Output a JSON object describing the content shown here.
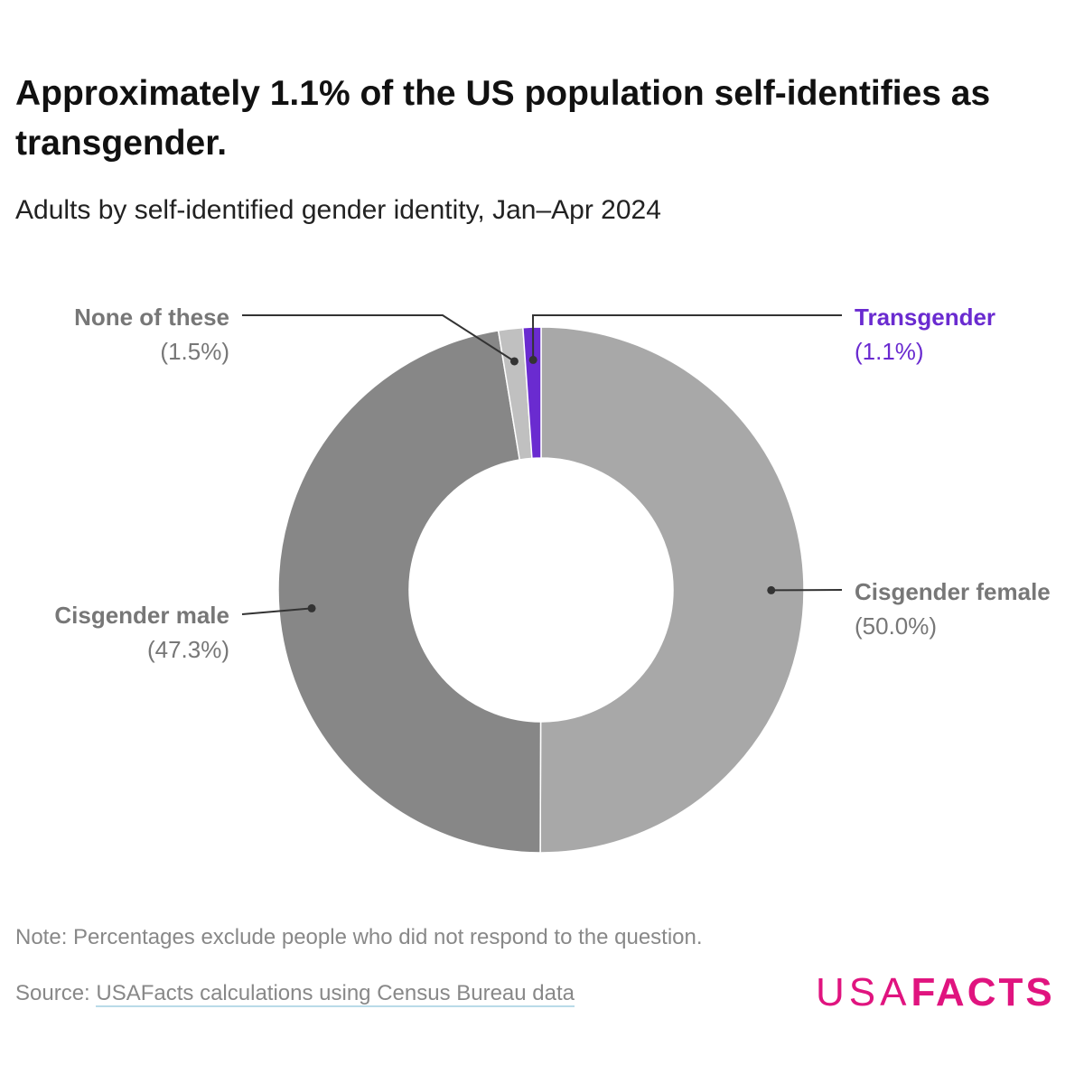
{
  "title": "Approximately 1.1% of the US population self-identifies as transgender.",
  "subtitle": "Adults by self-identified gender identity, Jan–Apr 2024",
  "note": "Note: Percentages exclude people who did not respond to the question.",
  "source": {
    "prefix": "Source: ",
    "link": "USAFacts calculations using Census Bureau data"
  },
  "logo": {
    "thin": "USA",
    "bold": "FACTS",
    "color": "#e0147f"
  },
  "chart_data": {
    "type": "pie",
    "donut": true,
    "start": "top, clockwise",
    "slices": [
      {
        "name": "Cisgender female",
        "value": 50.0,
        "label": "(50.0%)",
        "color": "#a8a8a8"
      },
      {
        "name": "Cisgender male",
        "value": 47.3,
        "label": "(47.3%)",
        "color": "#878787"
      },
      {
        "name": "None of these",
        "value": 1.5,
        "label": "(1.5%)",
        "color": "#c0c0c0"
      },
      {
        "name": "Transgender",
        "value": 1.1,
        "label": "(1.1%)",
        "color": "#6a2bd0"
      }
    ]
  }
}
